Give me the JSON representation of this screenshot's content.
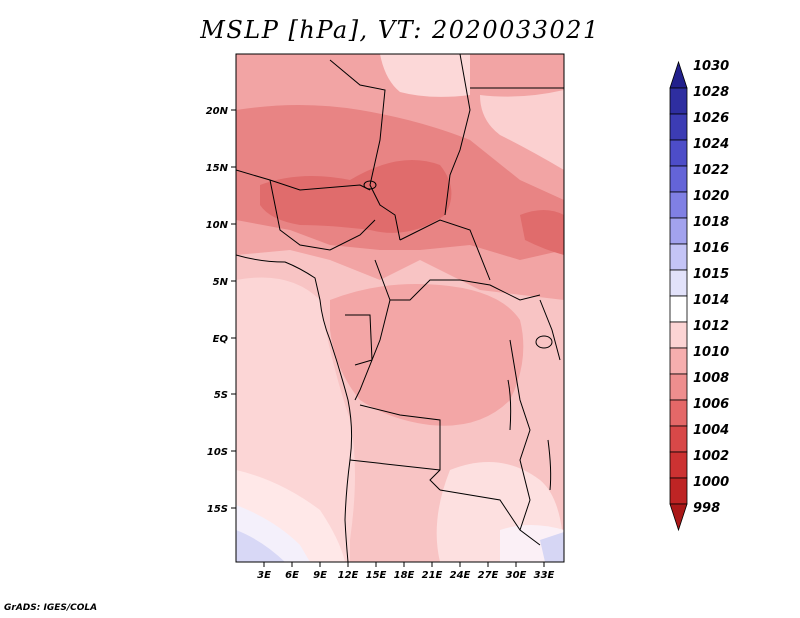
{
  "title": "MSLP [hPa], VT: 2020033021",
  "credit": "GrADS: IGES/COLA",
  "chart_data": {
    "type": "map-contour",
    "title": "MSLP [hPa], VT: 2020033021",
    "lat_labels": [
      "20N",
      "15N",
      "10N",
      "5N",
      "EQ",
      "5S",
      "10S",
      "15S"
    ],
    "lon_labels": [
      "3E",
      "6E",
      "9E",
      "12E",
      "15E",
      "18E",
      "21E",
      "24E",
      "27E",
      "30E",
      "33E"
    ],
    "colorbar": {
      "levels": [
        "1030",
        "1028",
        "1026",
        "1024",
        "1022",
        "1020",
        "1018",
        "1016",
        "1015",
        "1014",
        "1012",
        "1010",
        "1008",
        "1006",
        "1004",
        "1002",
        "1000",
        "998"
      ],
      "colors": [
        "#22208c",
        "#2e2ea0",
        "#3c3cb4",
        "#4d4dc8",
        "#6464d8",
        "#8080e4",
        "#a2a2ee",
        "#c4c4f6",
        "#e2e2fa",
        "#ffffff",
        "#fcd4d4",
        "#f6aeae",
        "#ee8e8e",
        "#e46868",
        "#d84848",
        "#cc3232",
        "#be2424",
        "#aa1818"
      ]
    }
  }
}
